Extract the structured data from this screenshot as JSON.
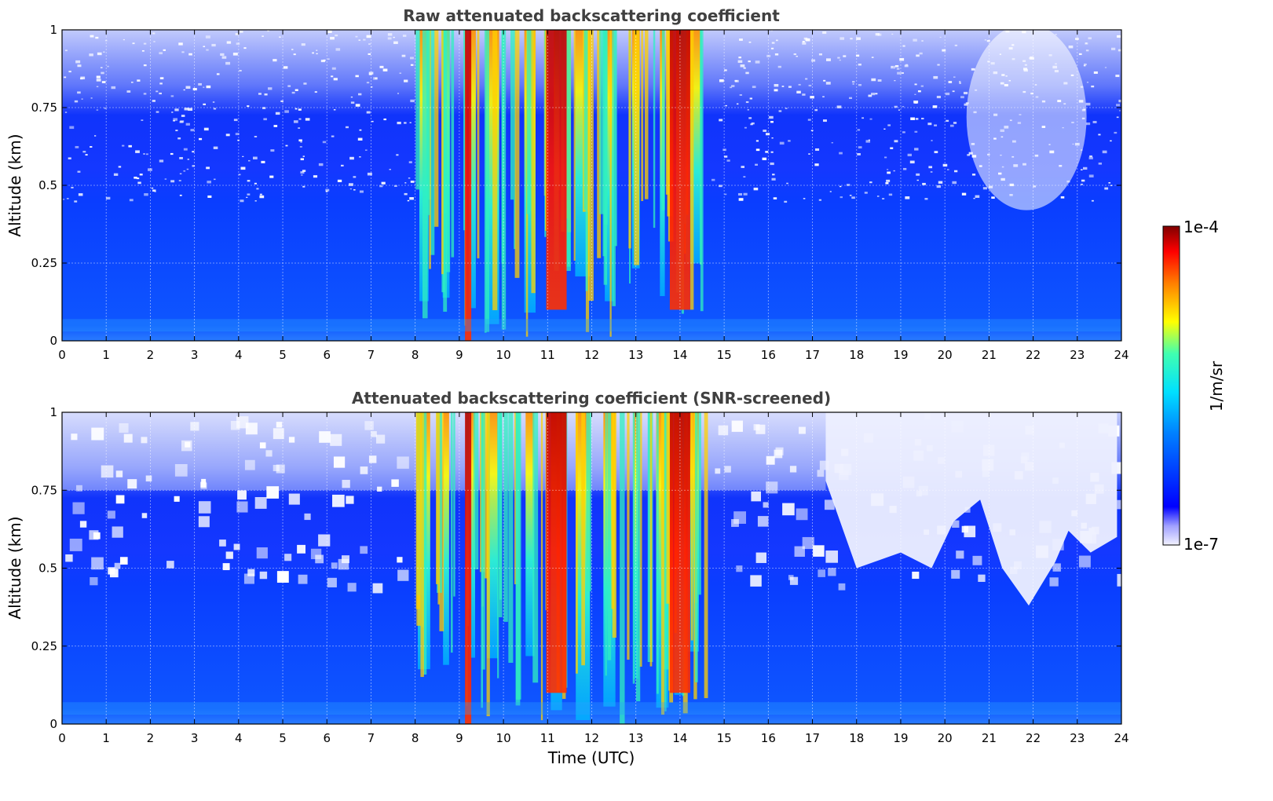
{
  "chart_data": [
    {
      "type": "heatmap",
      "title": "Raw attenuated backscattering coefficient",
      "xlabel": "",
      "ylabel": "Altitude (km)",
      "xlim": [
        0,
        24
      ],
      "ylim": [
        0,
        1
      ],
      "xticks": [
        "0",
        "1",
        "2",
        "3",
        "4",
        "5",
        "6",
        "7",
        "8",
        "9",
        "10",
        "11",
        "12",
        "13",
        "14",
        "15",
        "16",
        "17",
        "18",
        "19",
        "20",
        "21",
        "22",
        "23",
        "24"
      ],
      "yticks": [
        "0",
        "0.25",
        "0.5",
        "0.75",
        "1"
      ],
      "grid": true,
      "colorscale": "jet",
      "cloud_events_utc": [
        8.2,
        8.7,
        9.3,
        9.75,
        10.6,
        11.2,
        11.8,
        12.4,
        13.0,
        13.6,
        14.0,
        14.3
      ],
      "strong_layer_utc": [
        9.2,
        11.2,
        14.0
      ],
      "clear_upper_region_utc": [
        21.0,
        22.7
      ]
    },
    {
      "type": "heatmap",
      "title": "Attenuated backscattering coefficient (SNR-screened)",
      "xlabel": "Time (UTC)",
      "ylabel": "Altitude (km)",
      "xlim": [
        0,
        24
      ],
      "ylim": [
        0,
        1
      ],
      "xticks": [
        "0",
        "1",
        "2",
        "3",
        "4",
        "5",
        "6",
        "7",
        "8",
        "9",
        "10",
        "11",
        "12",
        "13",
        "14",
        "15",
        "16",
        "17",
        "18",
        "19",
        "20",
        "21",
        "22",
        "23",
        "24"
      ],
      "yticks": [
        "0",
        "0.25",
        "0.5",
        "0.75",
        "1"
      ],
      "grid": true,
      "colorscale": "jet",
      "cloud_events_utc": [
        8.2,
        8.7,
        9.3,
        9.75,
        10.6,
        11.2,
        11.8,
        12.4,
        13.0,
        13.6,
        14.0,
        14.3
      ],
      "strong_layer_utc": [
        9.2,
        11.2,
        14.0
      ],
      "screened_top_km": 0.55
    }
  ],
  "colorbar": {
    "label": "1/m/sr",
    "max_label": "1e-4",
    "min_label": "1e-7",
    "scale": "log",
    "range": [
      1e-07,
      0.0001
    ],
    "colors": [
      "#f2f2ff",
      "#0000ff",
      "#00c0ff",
      "#40ffc0",
      "#ffff00",
      "#ff8000",
      "#ff0000",
      "#800000"
    ]
  }
}
